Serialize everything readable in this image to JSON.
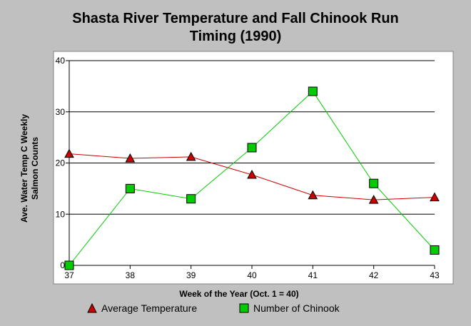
{
  "chart_data": {
    "type": "line",
    "title_lines": [
      "Shasta River Temperature and Fall Chinook Run",
      "Timing (1990)"
    ],
    "xlabel": "Week of the Year (Oct. 1 = 40)",
    "ylabel_lines": [
      "Ave. Water Temp C Weekly",
      "Salmon Counts"
    ],
    "x": [
      37,
      38,
      39,
      40,
      41,
      42,
      43
    ],
    "xlim": [
      37,
      43
    ],
    "ylim": [
      0,
      40
    ],
    "yticks": [
      0,
      10,
      20,
      30,
      40
    ],
    "grid": true,
    "legend_position": "bottom",
    "series": [
      {
        "name": "Average Temperature",
        "values": [
          21.8,
          20.9,
          21.2,
          17.7,
          13.7,
          12.8,
          13.3
        ],
        "color": "#cc0000",
        "marker": "triangle"
      },
      {
        "name": "Number of Chinook",
        "values": [
          0,
          15,
          13,
          23,
          34,
          16,
          3
        ],
        "color": "#00cc00",
        "marker": "square"
      }
    ]
  }
}
